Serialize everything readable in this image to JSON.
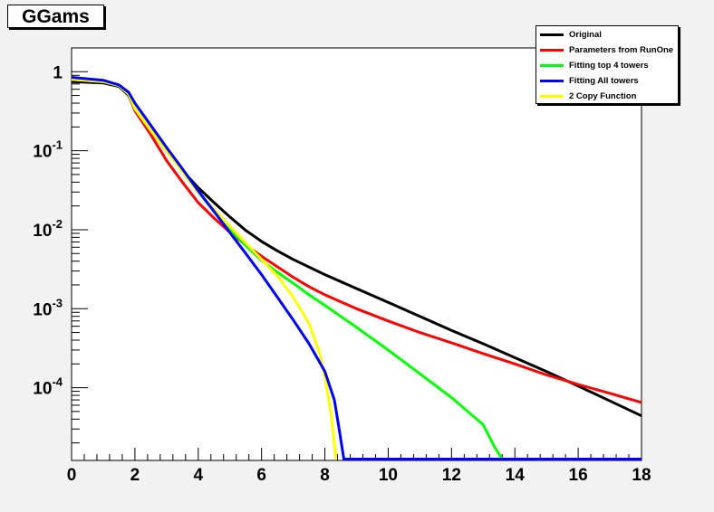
{
  "title": "GGams",
  "chart_data": {
    "type": "line",
    "title": "GGams",
    "xlabel": "",
    "ylabel": "",
    "xlim": [
      0,
      18
    ],
    "ylim": [
      1.2e-05,
      2.0
    ],
    "ylog": true,
    "x_ticks": [
      "0",
      "2",
      "4",
      "6",
      "8",
      "10",
      "12",
      "14",
      "16",
      "18"
    ],
    "y_ticks": [
      {
        "base": "1",
        "exp": "",
        "value": 1
      },
      {
        "base": "10",
        "exp": "-1",
        "value": 0.1
      },
      {
        "base": "10",
        "exp": "-2",
        "value": 0.01
      },
      {
        "base": "10",
        "exp": "-3",
        "value": 0.001
      },
      {
        "base": "10",
        "exp": "-4",
        "value": 0.0001
      }
    ],
    "legend_position": "top-right",
    "series": [
      {
        "name": "Original",
        "color": "#000000",
        "points": [
          [
            0,
            0.75
          ],
          [
            1,
            0.72
          ],
          [
            1.5,
            0.65
          ],
          [
            1.8,
            0.5
          ],
          [
            2,
            0.33
          ],
          [
            2.5,
            0.18
          ],
          [
            3,
            0.1
          ],
          [
            3.5,
            0.056
          ],
          [
            4,
            0.034
          ],
          [
            4.5,
            0.022
          ],
          [
            5,
            0.0145
          ],
          [
            5.5,
            0.0098
          ],
          [
            6,
            0.0071
          ],
          [
            6.5,
            0.0054
          ],
          [
            7,
            0.0042
          ],
          [
            8,
            0.0027
          ],
          [
            9,
            0.0018
          ],
          [
            10,
            0.0012
          ],
          [
            11,
            0.0008
          ],
          [
            12,
            0.00053
          ],
          [
            13,
            0.00036
          ],
          [
            14,
            0.00024
          ],
          [
            15,
            0.00016
          ],
          [
            16,
            0.000105
          ],
          [
            17,
            6.8e-05
          ],
          [
            18,
            4.4e-05
          ]
        ]
      },
      {
        "name": "Parameters from RunOne",
        "color": "#ff0000",
        "points": [
          [
            0,
            0.8
          ],
          [
            1,
            0.75
          ],
          [
            1.5,
            0.67
          ],
          [
            1.8,
            0.52
          ],
          [
            2,
            0.32
          ],
          [
            2.5,
            0.16
          ],
          [
            3,
            0.075
          ],
          [
            3.5,
            0.04
          ],
          [
            4,
            0.022
          ],
          [
            4.5,
            0.014
          ],
          [
            5,
            0.0093
          ],
          [
            5.5,
            0.0064
          ],
          [
            6,
            0.0046
          ],
          [
            6.5,
            0.0034
          ],
          [
            7,
            0.0025
          ],
          [
            7.5,
            0.0019
          ],
          [
            8,
            0.0015
          ],
          [
            9,
            0.001
          ],
          [
            10,
            0.0007
          ],
          [
            11,
            0.0005
          ],
          [
            12,
            0.00037
          ],
          [
            13,
            0.00027
          ],
          [
            14,
            0.0002
          ],
          [
            15,
            0.000145
          ],
          [
            16,
            0.00011
          ],
          [
            17,
            8.5e-05
          ],
          [
            18,
            6.5e-05
          ]
        ]
      },
      {
        "name": "Fitting top 4 towers",
        "color": "#00ff00",
        "points": [
          [
            0,
            0.8
          ],
          [
            1,
            0.75
          ],
          [
            1.5,
            0.67
          ],
          [
            1.8,
            0.52
          ],
          [
            2,
            0.34
          ],
          [
            2.5,
            0.18
          ],
          [
            3,
            0.1
          ],
          [
            3.5,
            0.055
          ],
          [
            4,
            0.03
          ],
          [
            4.5,
            0.017
          ],
          [
            5,
            0.01
          ],
          [
            5.5,
            0.0063
          ],
          [
            6,
            0.0041
          ],
          [
            6.5,
            0.0029
          ],
          [
            7,
            0.0021
          ],
          [
            7.5,
            0.0015
          ],
          [
            8,
            0.0011
          ],
          [
            9,
            0.00058
          ],
          [
            10,
            0.0003
          ],
          [
            11,
            0.00015
          ],
          [
            12,
            7.5e-05
          ],
          [
            13,
            3.4e-05
          ],
          [
            13.35,
            1.8e-05
          ],
          [
            13.6,
            1.25e-05
          ]
        ]
      },
      {
        "name": "Fitting All towers",
        "color": "#0000ff",
        "points": [
          [
            0,
            0.85
          ],
          [
            1,
            0.78
          ],
          [
            1.5,
            0.68
          ],
          [
            1.8,
            0.55
          ],
          [
            2,
            0.4
          ],
          [
            2.5,
            0.21
          ],
          [
            3,
            0.11
          ],
          [
            3.5,
            0.059
          ],
          [
            4,
            0.031
          ],
          [
            4.5,
            0.017
          ],
          [
            5,
            0.0092
          ],
          [
            5.5,
            0.005
          ],
          [
            6,
            0.0027
          ],
          [
            6.5,
            0.0014
          ],
          [
            7,
            0.00072
          ],
          [
            7.5,
            0.00036
          ],
          [
            8,
            0.00016
          ],
          [
            8.3,
            7e-05
          ],
          [
            8.45,
            3e-05
          ],
          [
            8.6,
            1.25e-05
          ],
          [
            18,
            1.25e-05
          ]
        ]
      },
      {
        "name": "2 Copy Function",
        "color": "#ffff00",
        "points": [
          [
            0,
            0.8
          ],
          [
            1,
            0.75
          ],
          [
            1.5,
            0.67
          ],
          [
            1.8,
            0.52
          ],
          [
            2,
            0.34
          ],
          [
            2.5,
            0.18
          ],
          [
            3,
            0.1
          ],
          [
            3.5,
            0.055
          ],
          [
            4,
            0.03
          ],
          [
            4.5,
            0.018
          ],
          [
            5,
            0.011
          ],
          [
            5.5,
            0.0068
          ],
          [
            6,
            0.0042
          ],
          [
            6.5,
            0.0026
          ],
          [
            7,
            0.0014
          ],
          [
            7.5,
            0.00065
          ],
          [
            7.8,
            0.0003
          ],
          [
            8,
            0.00014
          ],
          [
            8.2,
            4.5e-05
          ],
          [
            8.35,
            1.25e-05
          ]
        ]
      }
    ]
  }
}
